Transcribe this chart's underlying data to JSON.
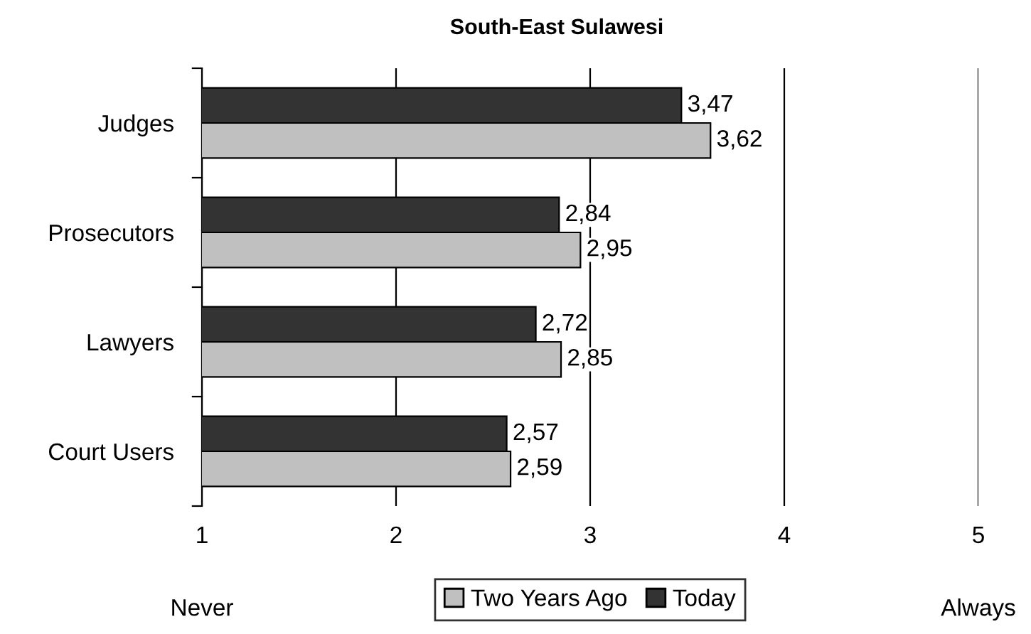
{
  "chart_data": {
    "type": "bar",
    "orientation": "horizontal",
    "title": "South-East Sulawesi",
    "categories": [
      "Judges",
      "Prosecutors",
      "Lawyers",
      "Court Users"
    ],
    "series": [
      {
        "name": "Two Years Ago",
        "color": "#c0c0c0",
        "values": [
          3.62,
          2.95,
          2.85,
          2.59
        ],
        "value_labels": [
          "3,62",
          "2,95",
          "2,85",
          "2,59"
        ]
      },
      {
        "name": "Today",
        "color": "#333333",
        "values": [
          3.47,
          2.84,
          2.72,
          2.57
        ],
        "value_labels": [
          "3,47",
          "2,84",
          "2,72",
          "2,57"
        ]
      }
    ],
    "xlim": [
      1,
      5
    ],
    "xticks": [
      1,
      2,
      3,
      4,
      5
    ],
    "grid": "x",
    "legend": "bottom",
    "annotations": [
      "Never",
      "Always"
    ]
  }
}
